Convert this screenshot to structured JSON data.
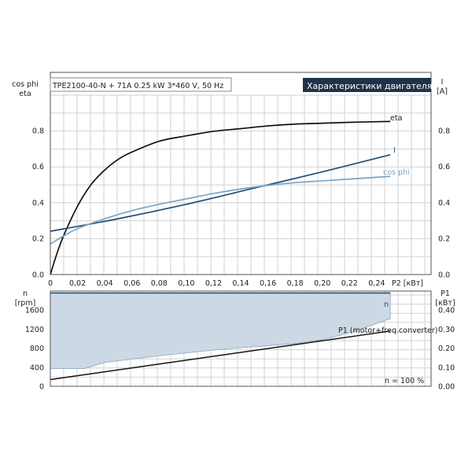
{
  "chart_data": [
    {
      "type": "line",
      "title": "Характеристики двигателя",
      "subtitle": "TPE2100-40-N + 71A   0.25 kW   3*460 V, 50 Hz",
      "ylabel_left": [
        "cos phi",
        "eta"
      ],
      "ylabel_right": [
        "I",
        "[A]"
      ],
      "xlabel": "P2 [кВт]",
      "xlim": [
        0,
        0.28
      ],
      "ylim": [
        0,
        1.0
      ],
      "xticks": [
        0,
        0.02,
        0.04,
        0.06,
        0.08,
        0.1,
        0.12,
        0.14,
        0.16,
        0.18,
        0.2,
        0.22,
        0.24
      ],
      "xtick_labels": [
        "0",
        "0,02",
        "0,04",
        "0,06",
        "0,08",
        "0,10",
        "0,12",
        "0,14",
        "0,16",
        "0,18",
        "0,20",
        "0,22",
        "0,24"
      ],
      "yticks": [
        0,
        0.2,
        0.4,
        0.6,
        0.8
      ],
      "ytick_labels": [
        "0.0",
        "0.2",
        "0.4",
        "0.6",
        "0.8"
      ],
      "grid": true,
      "series": [
        {
          "name": "eta",
          "color": "#111111",
          "x": [
            0.0,
            0.005,
            0.01,
            0.02,
            0.03,
            0.04,
            0.05,
            0.06,
            0.08,
            0.1,
            0.12,
            0.14,
            0.16,
            0.18,
            0.2,
            0.22,
            0.25
          ],
          "y": [
            0.0,
            0.12,
            0.22,
            0.38,
            0.5,
            0.58,
            0.64,
            0.68,
            0.74,
            0.77,
            0.795,
            0.81,
            0.825,
            0.835,
            0.84,
            0.845,
            0.85
          ]
        },
        {
          "name": "I",
          "color": "#1f4e79",
          "x": [
            0.0,
            0.05,
            0.1,
            0.15,
            0.2,
            0.25
          ],
          "y": [
            0.24,
            0.31,
            0.39,
            0.48,
            0.57,
            0.665
          ]
        },
        {
          "name": "cos phi",
          "color": "#7aa3c4",
          "x": [
            0.0,
            0.01,
            0.02,
            0.04,
            0.06,
            0.08,
            0.1,
            0.12,
            0.14,
            0.16,
            0.18,
            0.2,
            0.22,
            0.25
          ],
          "y": [
            0.17,
            0.215,
            0.255,
            0.31,
            0.355,
            0.39,
            0.42,
            0.45,
            0.475,
            0.495,
            0.51,
            0.52,
            0.53,
            0.545
          ]
        }
      ]
    },
    {
      "type": "area",
      "xlim": [
        0,
        0.28
      ],
      "ylabel_left": [
        "n",
        "[rpm]"
      ],
      "ylabel_right": [
        "P1",
        "[кВт]"
      ],
      "ylim_left": [
        0,
        2000
      ],
      "ylim_right": [
        0,
        0.5
      ],
      "yticks_left": [
        0,
        400,
        800,
        1200,
        1600
      ],
      "yticks_right": [
        0.0,
        0.1,
        0.2,
        0.3,
        0.4
      ],
      "ytick_labels_right": [
        "0.00",
        "0.10",
        "0.20",
        "0.30",
        "0.40"
      ],
      "grid": true,
      "annotation": "n = 100 %",
      "series": [
        {
          "name": "n",
          "color": "#1f4e79",
          "x": [
            0.0,
            0.25
          ],
          "y": [
            1960,
            1960
          ],
          "fill_lower": {
            "x": [
              0.0,
              0.025,
              0.04,
              0.06,
              0.08,
              0.1,
              0.12,
              0.14,
              0.16,
              0.18,
              0.2,
              0.22,
              0.25
            ],
            "y": [
              370,
              370,
              500,
              570,
              640,
              700,
              760,
              810,
              850,
              900,
              980,
              1120,
              1420
            ]
          }
        },
        {
          "name": "P1 (motor+freq.converter)",
          "color": "#111111",
          "axis": "right",
          "x": [
            0.0,
            0.25
          ],
          "y": [
            0.035,
            0.29
          ]
        }
      ]
    }
  ]
}
